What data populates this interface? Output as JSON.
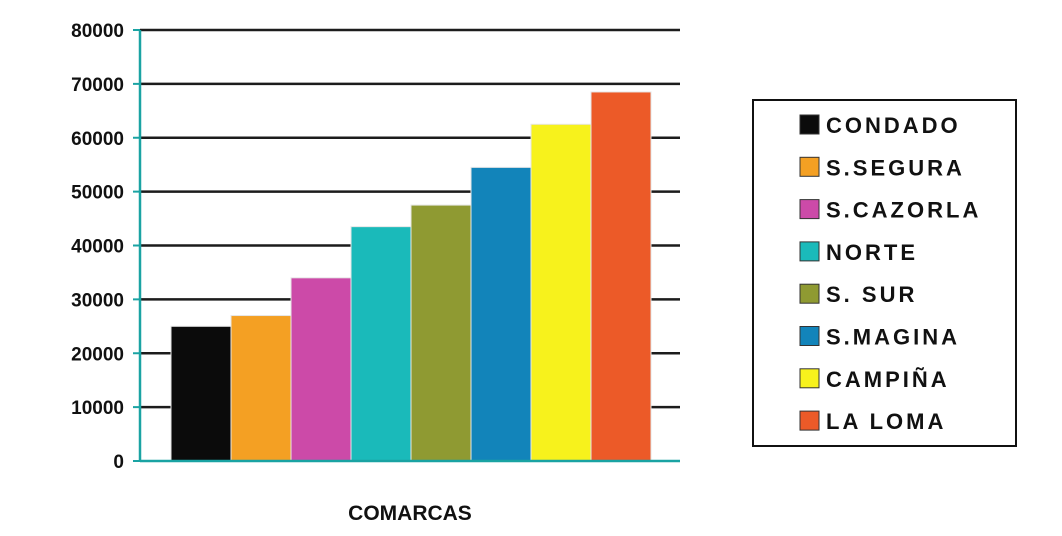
{
  "chart_data": {
    "type": "bar",
    "xlabel": "COMARCAS",
    "ylabel": "",
    "title": "",
    "ylim": [
      0,
      80000
    ],
    "yticks": [
      0,
      10000,
      20000,
      30000,
      40000,
      50000,
      60000,
      70000,
      80000
    ],
    "ytick_labels": [
      "0",
      "10000",
      "20000",
      "30000",
      "40000",
      "50000",
      "60000",
      "70000",
      "80000"
    ],
    "grid": "horizontal",
    "legend_position": "right",
    "series": [
      {
        "name": "CONDADO",
        "value": 25000,
        "color": "#0b0b0b"
      },
      {
        "name": "S.SEGURA",
        "value": 27000,
        "color": "#f4a023"
      },
      {
        "name": "S.CAZORLA",
        "value": 34000,
        "color": "#cc4aa8"
      },
      {
        "name": "NORTE",
        "value": 43500,
        "color": "#1ababa"
      },
      {
        "name": "S. SUR",
        "value": 47500,
        "color": "#8f9a32"
      },
      {
        "name": "S.MAGINA",
        "value": 54500,
        "color": "#1284ba"
      },
      {
        "name": "CAMPIÑA",
        "value": 62500,
        "color": "#f7f21c"
      },
      {
        "name": "LA LOMA",
        "value": 68500,
        "color": "#ec5a28"
      }
    ],
    "colors": {
      "axis": "#1aa3a3",
      "grid": "#1c1c1c",
      "legend_border": "#111111"
    }
  }
}
